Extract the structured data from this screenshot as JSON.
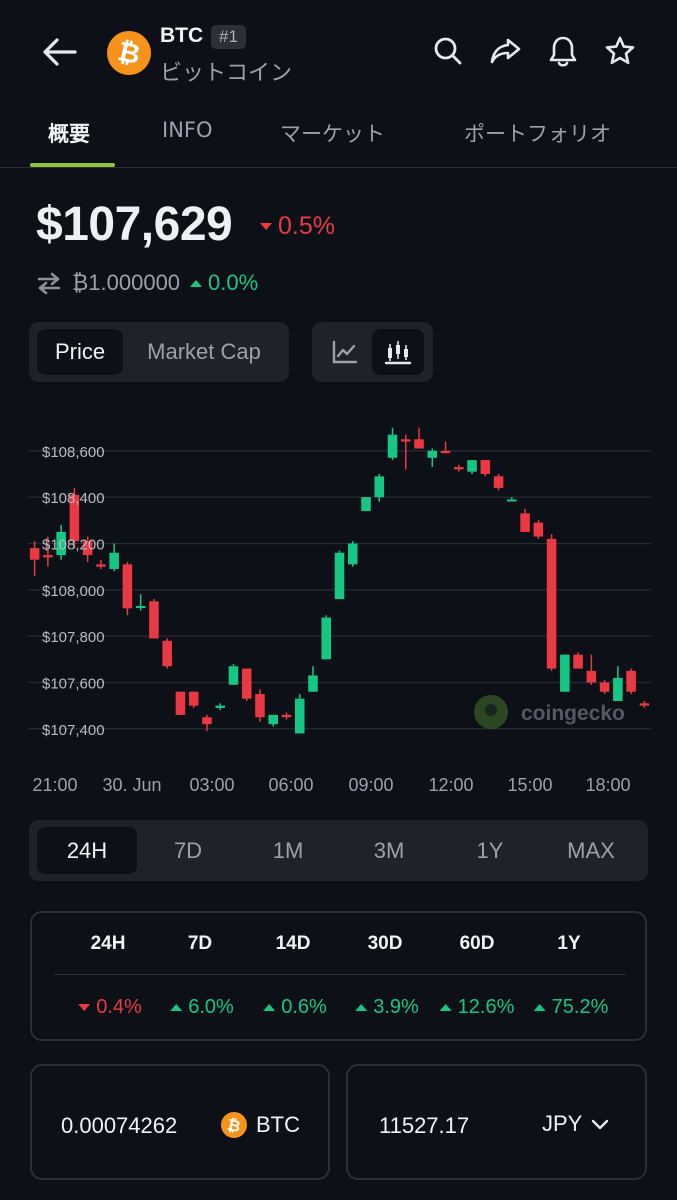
{
  "header": {
    "symbol": "BTC",
    "rank": "#1",
    "name": "ビットコイン"
  },
  "tabs": [
    {
      "label": "概要",
      "active": true
    },
    {
      "label": "INFO",
      "active": false
    },
    {
      "label": "マーケット",
      "active": false
    },
    {
      "label": "ポートフォリオ",
      "active": false
    }
  ],
  "price": {
    "value": "$107,629",
    "change": "0.5%",
    "change_direction": "down",
    "btc_value": "₿1.000000",
    "btc_change": "0.0%",
    "btc_change_direction": "up"
  },
  "toggles": {
    "metric": [
      "Price",
      "Market Cap"
    ],
    "metric_active": "Price",
    "chart_types": [
      "line-chart-icon",
      "candlestick-icon"
    ],
    "chart_type_active": "candlestick"
  },
  "chart_data": {
    "type": "candlestick",
    "x_labels": [
      "21:00",
      "30. Jun",
      "03:00",
      "06:00",
      "09:00",
      "12:00",
      "15:00",
      "18:00"
    ],
    "y_ticks": [
      "$108,600",
      "$108,400",
      "$108,200",
      "$108,000",
      "$107,800",
      "$107,600",
      "$107,400"
    ],
    "y_tick_values": [
      108600,
      108400,
      108200,
      108000,
      107800,
      107600,
      107400
    ],
    "ylim": [
      107330,
      108690
    ],
    "grid": true,
    "watermark": "coingecko",
    "candles": [
      {
        "o": 108180,
        "h": 108210,
        "l": 108060,
        "c": 108130
      },
      {
        "o": 108150,
        "h": 108230,
        "l": 108100,
        "c": 108140
      },
      {
        "o": 108150,
        "h": 108280,
        "l": 108130,
        "c": 108250
      },
      {
        "o": 108410,
        "h": 108440,
        "l": 108180,
        "c": 108210
      },
      {
        "o": 108210,
        "h": 108230,
        "l": 108120,
        "c": 108150
      },
      {
        "o": 108110,
        "h": 108130,
        "l": 108090,
        "c": 108100
      },
      {
        "o": 108090,
        "h": 108200,
        "l": 108080,
        "c": 108160
      },
      {
        "o": 108110,
        "h": 108120,
        "l": 107890,
        "c": 107920
      },
      {
        "o": 107930,
        "h": 107980,
        "l": 107910,
        "c": 107930
      },
      {
        "o": 107950,
        "h": 107960,
        "l": 107790,
        "c": 107790
      },
      {
        "o": 107780,
        "h": 107790,
        "l": 107660,
        "c": 107670
      },
      {
        "o": 107560,
        "h": 107560,
        "l": 107460,
        "c": 107460
      },
      {
        "o": 107560,
        "h": 107560,
        "l": 107490,
        "c": 107500
      },
      {
        "o": 107450,
        "h": 107460,
        "l": 107390,
        "c": 107420
      },
      {
        "o": 107490,
        "h": 107510,
        "l": 107480,
        "c": 107500
      },
      {
        "o": 107590,
        "h": 107680,
        "l": 107590,
        "c": 107670
      },
      {
        "o": 107660,
        "h": 107660,
        "l": 107520,
        "c": 107530
      },
      {
        "o": 107550,
        "h": 107570,
        "l": 107430,
        "c": 107450
      },
      {
        "o": 107420,
        "h": 107460,
        "l": 107410,
        "c": 107460
      },
      {
        "o": 107460,
        "h": 107470,
        "l": 107440,
        "c": 107450
      },
      {
        "o": 107380,
        "h": 107550,
        "l": 107380,
        "c": 107530
      },
      {
        "o": 107560,
        "h": 107670,
        "l": 107560,
        "c": 107630
      },
      {
        "o": 107700,
        "h": 107890,
        "l": 107700,
        "c": 107880
      },
      {
        "o": 107960,
        "h": 108170,
        "l": 107960,
        "c": 108160
      },
      {
        "o": 108110,
        "h": 108210,
        "l": 108100,
        "c": 108200
      },
      {
        "o": 108340,
        "h": 108400,
        "l": 108340,
        "c": 108400
      },
      {
        "o": 108400,
        "h": 108500,
        "l": 108380,
        "c": 108490
      },
      {
        "o": 108570,
        "h": 108700,
        "l": 108560,
        "c": 108670
      },
      {
        "o": 108650,
        "h": 108670,
        "l": 108520,
        "c": 108640
      },
      {
        "o": 108650,
        "h": 108700,
        "l": 108610,
        "c": 108610
      },
      {
        "o": 108570,
        "h": 108610,
        "l": 108530,
        "c": 108600
      },
      {
        "o": 108600,
        "h": 108640,
        "l": 108590,
        "c": 108590
      },
      {
        "o": 108530,
        "h": 108540,
        "l": 108510,
        "c": 108520
      },
      {
        "o": 108510,
        "h": 108560,
        "l": 108500,
        "c": 108560
      },
      {
        "o": 108560,
        "h": 108560,
        "l": 108490,
        "c": 108500
      },
      {
        "o": 108490,
        "h": 108500,
        "l": 108430,
        "c": 108440
      },
      {
        "o": 108390,
        "h": 108400,
        "l": 108390,
        "c": 108390
      },
      {
        "o": 108330,
        "h": 108350,
        "l": 108250,
        "c": 108250
      },
      {
        "o": 108290,
        "h": 108300,
        "l": 108220,
        "c": 108230
      },
      {
        "o": 108220,
        "h": 108240,
        "l": 107650,
        "c": 107660
      },
      {
        "o": 107560,
        "h": 107720,
        "l": 107560,
        "c": 107720
      },
      {
        "o": 107720,
        "h": 107730,
        "l": 107660,
        "c": 107660
      },
      {
        "o": 107650,
        "h": 107720,
        "l": 107590,
        "c": 107600
      },
      {
        "o": 107600,
        "h": 107610,
        "l": 107550,
        "c": 107560
      },
      {
        "o": 107520,
        "h": 107670,
        "l": 107520,
        "c": 107620
      },
      {
        "o": 107650,
        "h": 107660,
        "l": 107550,
        "c": 107560
      },
      {
        "o": 107510,
        "h": 107520,
        "l": 107490,
        "c": 107500
      }
    ]
  },
  "ranges": [
    "24H",
    "7D",
    "1M",
    "3M",
    "1Y",
    "MAX"
  ],
  "range_active": "24H",
  "performance": [
    {
      "label": "24H",
      "value": "0.4%",
      "direction": "down"
    },
    {
      "label": "7D",
      "value": "6.0%",
      "direction": "up"
    },
    {
      "label": "14D",
      "value": "0.6%",
      "direction": "up"
    },
    {
      "label": "30D",
      "value": "3.9%",
      "direction": "up"
    },
    {
      "label": "60D",
      "value": "12.6%",
      "direction": "up"
    },
    {
      "label": "1Y",
      "value": "75.2%",
      "direction": "up"
    }
  ],
  "converter": {
    "crypto_amount": "0.00074262",
    "crypto_unit": "BTC",
    "fiat_amount": "11527.17",
    "fiat_unit": "JPY"
  },
  "colors": {
    "background": "#0d1117",
    "up": "#16c784",
    "down": "#ea3943",
    "accent": "#8dc63f",
    "bitcoin": "#f7931a"
  }
}
